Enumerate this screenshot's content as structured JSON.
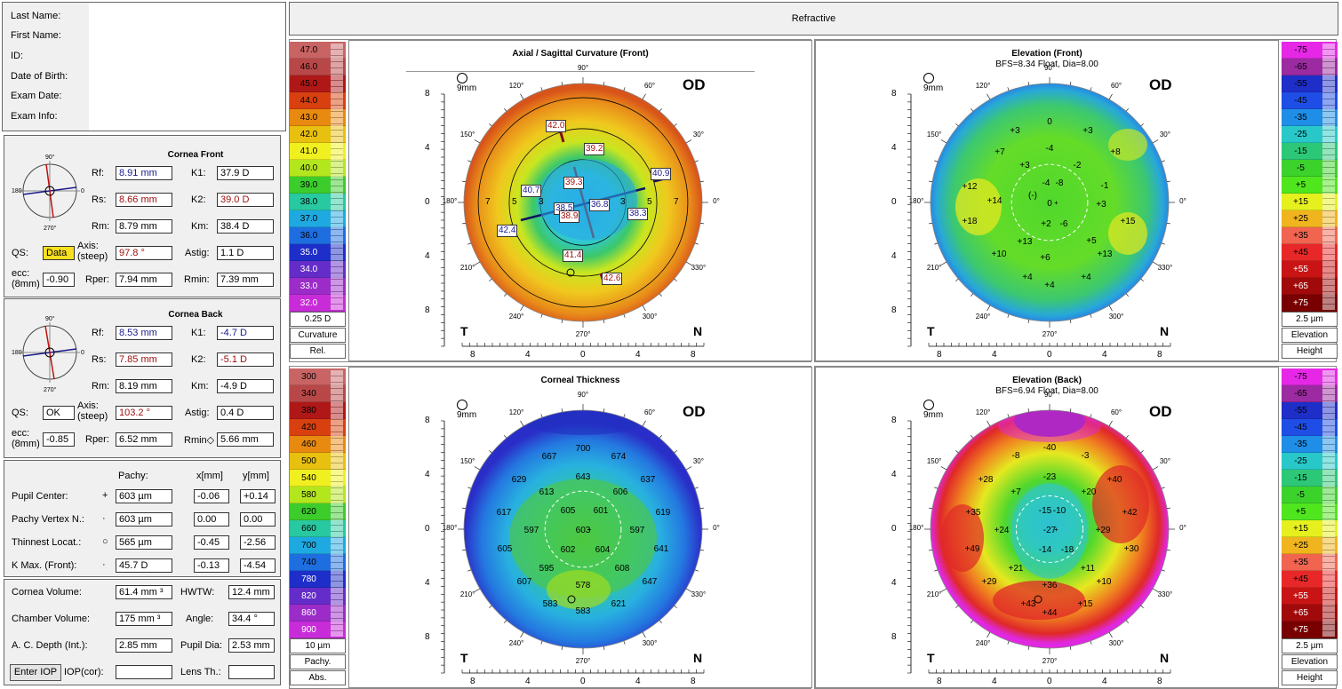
{
  "patient": {
    "labels": [
      "Last Name:",
      "First Name:",
      "ID:",
      "Date of Birth:",
      "Exam Date:",
      "Exam Info:"
    ]
  },
  "header": {
    "title": "Refractive"
  },
  "front": {
    "title": "Cornea Front",
    "rf_label": "Rf:",
    "rf": "8.91 mm",
    "k1_label": "K1:",
    "k1": "37.9 D",
    "rs_label": "Rs:",
    "rs": "8.66 mm",
    "k2_label": "K2:",
    "k2": "39.0 D",
    "rm_label": "Rm:",
    "rm": "8.79 mm",
    "km_label": "Km:",
    "km": "38.4 D",
    "qs_label": "QS:",
    "qs": "Data",
    "axis_label": "Axis:\n(steep)",
    "axis": "97.8 °",
    "astig_label": "Astig:",
    "astig": "1.1 D",
    "ecc_label": "ecc:\n(8mm)",
    "ecc": "-0.90",
    "rper_label": "Rper:",
    "rper": "7.94 mm",
    "rmin_label": "Rmin:",
    "rmin": "7.39 mm"
  },
  "back": {
    "title": "Cornea Back",
    "rf_label": "Rf:",
    "rf": "8.53 mm",
    "k1_label": "K1:",
    "k1": "-4.7 D",
    "rs_label": "Rs:",
    "rs": "7.85 mm",
    "k2_label": "K2:",
    "k2": "-5.1 D",
    "rm_label": "Rm:",
    "rm": "8.19 mm",
    "km_label": "Km:",
    "km": "-4.9 D",
    "qs_label": "QS:",
    "qs": "OK",
    "axis_label": "Axis:\n(steep)",
    "axis": "103.2 °",
    "astig_label": "Astig:",
    "astig": "0.4 D",
    "ecc_label": "ecc:\n(8mm)",
    "ecc": "-0.85",
    "rper_label": "Rper:",
    "rper": "6.52 mm",
    "rmin_label": "Rmin◇",
    "rmin": "5.66 mm"
  },
  "pachy": {
    "col_pachy": "Pachy:",
    "col_x": "x[mm]",
    "col_y": "y[mm]",
    "rows": [
      {
        "label": "Pupil Center:",
        "sym": "+",
        "pachy": "603 µm",
        "x": "-0.06",
        "y": "+0.14"
      },
      {
        "label": "Pachy Vertex N.:",
        "sym": "·",
        "pachy": "603 µm",
        "x": "0.00",
        "y": "0.00"
      },
      {
        "label": "Thinnest Locat.:",
        "sym": "○",
        "pachy": "565 µm",
        "x": "-0.45",
        "y": "-2.56"
      },
      {
        "label": "K Max. (Front):",
        "sym": "·",
        "pachy": "45.7 D",
        "x": "-0.13",
        "y": "-4.54"
      }
    ]
  },
  "volumes": {
    "cv_label": "Cornea Volume:",
    "cv": "61.4 mm ³",
    "hwtw_label": "HWTW:",
    "hwtw": "12.4 mm",
    "chv_label": "Chamber Volume:",
    "chv": "175 mm ³",
    "angle_label": "Angle:",
    "angle": "34.4 °",
    "acd_label": "A. C. Depth (Int.):",
    "acd": "2.85 mm",
    "pupil_label": "Pupil Dia:",
    "pupil": "2.53 mm",
    "iop_button": "Enter IOP",
    "iopcor_label": "IOP(cor):",
    "iopcor": "",
    "lens_label": "Lens Th.:",
    "lens": ""
  },
  "scales": {
    "curvature": {
      "values": [
        "47.0",
        "46.0",
        "45.0",
        "44.0",
        "43.0",
        "42.0",
        "41.0",
        "40.0",
        "39.0",
        "38.0",
        "37.0",
        "36.0",
        "35.0",
        "34.0",
        "33.0",
        "32.0"
      ],
      "step": "0.25 D",
      "name": "Curvature",
      "mode": "Rel.",
      "colors": [
        "#c86464",
        "#b84848",
        "#b01818",
        "#d84010",
        "#e88a10",
        "#e8c010",
        "#f0f020",
        "#b4e61e",
        "#3ccc2c",
        "#28c8a0",
        "#1eaae0",
        "#1e6ee0",
        "#1e2ec8",
        "#642cc8",
        "#9c2cc8",
        "#c82cd8"
      ]
    },
    "elev_front": {
      "values": [
        "-75",
        "-65",
        "-55",
        "-45",
        "-35",
        "-25",
        "-15",
        "-5",
        "+5",
        "+15",
        "+25",
        "+35",
        "+45",
        "+55",
        "+65",
        "+75"
      ],
      "step": "2.5 µm",
      "name": "Elevation",
      "mode": "Height",
      "colors": [
        "#e628e6",
        "#9c2aa0",
        "#1e2ec8",
        "#1e4ee6",
        "#1e8ee6",
        "#28c8c8",
        "#2cc878",
        "#3cd22c",
        "#50e61e",
        "#e6f01e",
        "#f0b41e",
        "#f06450",
        "#e82828",
        "#c81414",
        "#a00a0a",
        "#780000"
      ]
    },
    "thickness": {
      "values": [
        "300",
        "340",
        "380",
        "420",
        "460",
        "500",
        "540",
        "580",
        "620",
        "660",
        "700",
        "740",
        "780",
        "820",
        "860",
        "900"
      ],
      "step": "10 µm",
      "name": "Pachy.",
      "mode": "Abs.",
      "colors": [
        "#c86464",
        "#b84848",
        "#b01818",
        "#d84010",
        "#e88a10",
        "#e8c010",
        "#f0f020",
        "#b4e61e",
        "#3ccc2c",
        "#28c8a0",
        "#1eaae0",
        "#1e6ee0",
        "#1e2ec8",
        "#642cc8",
        "#9c2cc8",
        "#c82cd8"
      ]
    },
    "elev_back": {
      "values": [
        "-75",
        "-65",
        "-55",
        "-45",
        "-35",
        "-25",
        "-15",
        "-5",
        "+5",
        "+15",
        "+25",
        "+35",
        "+45",
        "+55",
        "+65",
        "+75"
      ],
      "step": "2.5 µm",
      "name": "Elevation",
      "mode": "Height",
      "colors": [
        "#e628e6",
        "#9c2aa0",
        "#1e2ec8",
        "#1e4ee6",
        "#1e8ee6",
        "#28c8c8",
        "#2cc878",
        "#3cd22c",
        "#50e61e",
        "#e6f01e",
        "#f0b41e",
        "#f06450",
        "#e82828",
        "#c81414",
        "#a00a0a",
        "#780000"
      ]
    }
  },
  "maps": {
    "axial": {
      "title": "Axial / Sagittal Curvature (Front)",
      "subtitle": "",
      "eye": "OD",
      "zoom": "9mm",
      "t": "T",
      "n": "N",
      "values": [
        {
          "v": "42.0",
          "c": "#a01010"
        },
        {
          "v": "39.2",
          "c": "#a01010"
        },
        {
          "v": "40.9",
          "c": "#1a1a8c"
        },
        {
          "v": "40.7",
          "c": "#1a1a8c"
        },
        {
          "v": "39.3",
          "c": "#a01010"
        },
        {
          "v": "38.5",
          "c": "#1a1a8c"
        },
        {
          "v": "36.8",
          "c": "#1a1a8c"
        },
        {
          "v": "38.9",
          "c": "#a01010"
        },
        {
          "v": "38.3",
          "c": "#1a1a8c"
        },
        {
          "v": "42.4",
          "c": "#1a1a8c"
        },
        {
          "v": "41.4",
          "c": "#a01010"
        },
        {
          "v": "42.6",
          "c": "#a01010"
        }
      ],
      "ring_labels": [
        "7",
        "5",
        "3",
        "3",
        "5",
        "7"
      ]
    },
    "elev_front": {
      "title": "Elevation (Front)",
      "subtitle": "BFS=8.34 Float, Dia=8.00",
      "eye": "OD",
      "zoom": "9mm",
      "t": "T",
      "n": "N",
      "values": [
        "+3",
        "0",
        "+3",
        "-4",
        "+7",
        "+8",
        "+3",
        "-2",
        "-4",
        "-8",
        "-1",
        "+12",
        "+14",
        "(-)",
        "+3",
        "0",
        "+18",
        "+2",
        "-6",
        "+15",
        "+13",
        "+5",
        "+10",
        "+6",
        "+13",
        "+4",
        "+4",
        "+4"
      ]
    },
    "thickness": {
      "title": "Corneal Thickness",
      "subtitle": "",
      "eye": "OD",
      "zoom": "9mm",
      "t": "T",
      "n": "N",
      "values": [
        "700",
        "667",
        "674",
        "643",
        "629",
        "637",
        "613",
        "606",
        "605",
        "601",
        "617",
        "619",
        "597",
        "603",
        "597",
        "605",
        "602",
        "604",
        "641",
        "595",
        "608",
        "607",
        "578",
        "647",
        "583",
        "583",
        "621"
      ]
    },
    "elev_back": {
      "title": "Elevation (Back)",
      "subtitle": "BFS=6.94 Float, Dia=8.00",
      "eye": "OD",
      "zoom": "9mm",
      "t": "T",
      "n": "N",
      "values": [
        "-40",
        "-8",
        "-3",
        "-23",
        "+28",
        "+40",
        "+7",
        "+20",
        "+35",
        "-15",
        "-10",
        "+42",
        "+24",
        "-27",
        "+29",
        "+49",
        "-14",
        "-18",
        "+30",
        "+21",
        "+11",
        "+29",
        "+36",
        "+10",
        "+43",
        "+44",
        "+15"
      ]
    }
  },
  "axes": {
    "ticks": [
      "8",
      "4",
      "0",
      "4",
      "8"
    ],
    "angles": [
      "90°",
      "60°",
      "30°",
      "0°",
      "330°",
      "300°",
      "270°",
      "240°",
      "210°",
      "180°",
      "150°",
      "120°"
    ]
  }
}
